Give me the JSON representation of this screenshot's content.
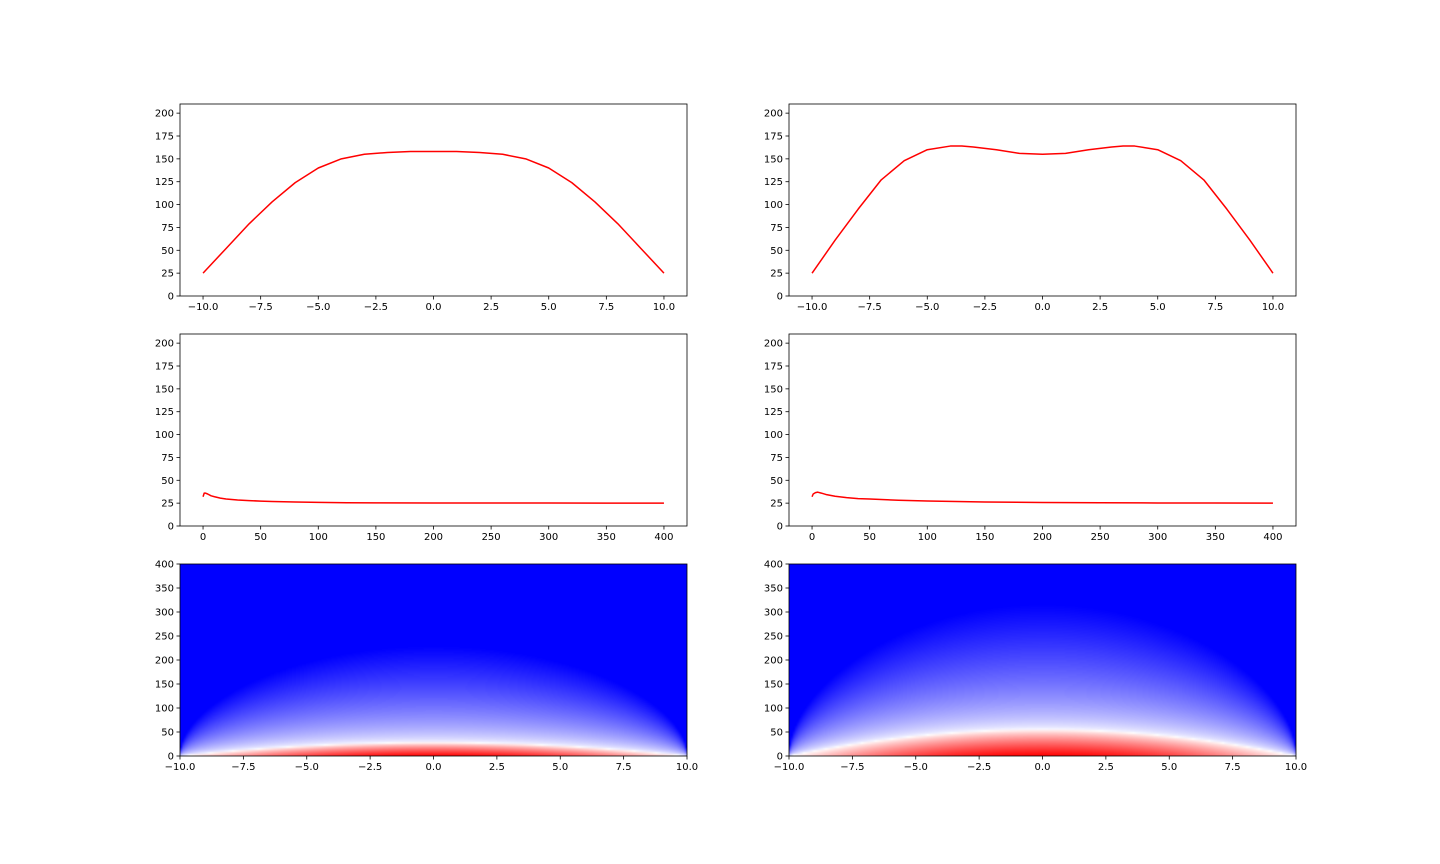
{
  "chart_data": [
    {
      "type": "line",
      "position": "top-left",
      "x": [
        -10,
        -9,
        -8,
        -7,
        -6,
        -5,
        -4,
        -3,
        -2,
        -1,
        0,
        1,
        2,
        3,
        4,
        5,
        6,
        7,
        8,
        9,
        10
      ],
      "series": [
        {
          "color": "#ff0000",
          "values": [
            25,
            52,
            79,
            103,
            124,
            140,
            150,
            155,
            157,
            158,
            158,
            158,
            157,
            155,
            150,
            140,
            124,
            103,
            79,
            52,
            25
          ]
        }
      ],
      "xlim": [
        -11,
        11
      ],
      "ylim": [
        0,
        210
      ],
      "xticks": [
        -10.0,
        -7.5,
        -5.0,
        -2.5,
        0.0,
        2.5,
        5.0,
        7.5,
        10.0
      ],
      "xtick_labels": [
        "−10.0",
        "−7.5",
        "−5.0",
        "−2.5",
        "0.0",
        "2.5",
        "5.0",
        "7.5",
        "10.0"
      ],
      "yticks": [
        0,
        25,
        50,
        75,
        100,
        125,
        150,
        175,
        200
      ],
      "ytick_labels": [
        "0",
        "25",
        "50",
        "75",
        "100",
        "125",
        "150",
        "175",
        "200"
      ]
    },
    {
      "type": "line",
      "position": "top-right",
      "x": [
        -10,
        -9,
        -8,
        -7,
        -6,
        -5,
        -4,
        -3.5,
        -3,
        -2,
        -1,
        0,
        1,
        2,
        3,
        3.5,
        4,
        5,
        6,
        7,
        8,
        9,
        10
      ],
      "series": [
        {
          "color": "#ff0000",
          "values": [
            25,
            61,
            95,
            127,
            148,
            160,
            164,
            164,
            163,
            160,
            156,
            155,
            156,
            160,
            163,
            164,
            164,
            160,
            148,
            127,
            95,
            61,
            25
          ]
        }
      ],
      "xlim": [
        -11,
        11
      ],
      "ylim": [
        0,
        210
      ],
      "xticks": [
        -10.0,
        -7.5,
        -5.0,
        -2.5,
        0.0,
        2.5,
        5.0,
        7.5,
        10.0
      ],
      "xtick_labels": [
        "−10.0",
        "−7.5",
        "−5.0",
        "−2.5",
        "0.0",
        "2.5",
        "5.0",
        "7.5",
        "10.0"
      ],
      "yticks": [
        0,
        25,
        50,
        75,
        100,
        125,
        150,
        175,
        200
      ],
      "ytick_labels": [
        "0",
        "25",
        "50",
        "75",
        "100",
        "125",
        "150",
        "175",
        "200"
      ]
    },
    {
      "type": "line",
      "position": "middle-left",
      "x": [
        0,
        1,
        2,
        4,
        7,
        10,
        15,
        20,
        30,
        40,
        50,
        60,
        80,
        100,
        125,
        150,
        200,
        250,
        300,
        350,
        400
      ],
      "series": [
        {
          "color": "#ff0000",
          "values": [
            32,
            36,
            36,
            35,
            33,
            32,
            30.5,
            29.5,
            28.5,
            27.8,
            27.2,
            26.8,
            26.2,
            25.8,
            25.5,
            25.3,
            25.2,
            25.1,
            25.1,
            25,
            25
          ]
        }
      ],
      "xlim": [
        -20,
        420
      ],
      "ylim": [
        0,
        210
      ],
      "xticks": [
        0,
        50,
        100,
        150,
        200,
        250,
        300,
        350,
        400
      ],
      "xtick_labels": [
        "0",
        "50",
        "100",
        "150",
        "200",
        "250",
        "300",
        "350",
        "400"
      ],
      "yticks": [
        0,
        25,
        50,
        75,
        100,
        125,
        150,
        175,
        200
      ],
      "ytick_labels": [
        "0",
        "25",
        "50",
        "75",
        "100",
        "125",
        "150",
        "175",
        "200"
      ]
    },
    {
      "type": "line",
      "position": "middle-right",
      "x": [
        0,
        1,
        3,
        5,
        8,
        12,
        20,
        30,
        40,
        50,
        75,
        100,
        150,
        200,
        250,
        300,
        350,
        400
      ],
      "series": [
        {
          "color": "#ff0000",
          "values": [
            32,
            35,
            36.5,
            37,
            36,
            34.5,
            32.5,
            31,
            30,
            29.5,
            28.2,
            27.3,
            26.3,
            25.7,
            25.4,
            25.2,
            25.1,
            25
          ]
        }
      ],
      "xlim": [
        -20,
        420
      ],
      "ylim": [
        0,
        210
      ],
      "xticks": [
        0,
        50,
        100,
        150,
        200,
        250,
        300,
        350,
        400
      ],
      "xtick_labels": [
        "0",
        "50",
        "100",
        "150",
        "200",
        "250",
        "300",
        "350",
        "400"
      ],
      "yticks": [
        0,
        25,
        50,
        75,
        100,
        125,
        150,
        175,
        200
      ],
      "ytick_labels": [
        "0",
        "25",
        "50",
        "75",
        "100",
        "125",
        "150",
        "175",
        "200"
      ]
    },
    {
      "type": "heatmap",
      "position": "bottom-left",
      "colormap": "bwr",
      "colors": {
        "low": "#0000ff",
        "mid": "#ffffff",
        "high": "#ff0000"
      },
      "xlim": [
        -10,
        10
      ],
      "ylim": [
        0,
        400
      ],
      "hot_region_height": 28,
      "spread_height": 200,
      "xticks": [
        -10.0,
        -7.5,
        -5.0,
        -2.5,
        0.0,
        2.5,
        5.0,
        7.5,
        10.0
      ],
      "xtick_labels": [
        "−10.0",
        "−7.5",
        "−5.0",
        "−2.5",
        "0.0",
        "2.5",
        "5.0",
        "7.5",
        "10.0"
      ],
      "yticks": [
        0,
        50,
        100,
        150,
        200,
        250,
        300,
        350,
        400
      ],
      "ytick_labels": [
        "0",
        "50",
        "100",
        "150",
        "200",
        "250",
        "300",
        "350",
        "400"
      ]
    },
    {
      "type": "heatmap",
      "position": "bottom-right",
      "colormap": "bwr",
      "colors": {
        "low": "#0000ff",
        "mid": "#ffffff",
        "high": "#ff0000"
      },
      "xlim": [
        -10,
        10
      ],
      "ylim": [
        0,
        400
      ],
      "hot_region_height": 55,
      "spread_height": 260,
      "xticks": [
        -10.0,
        -7.5,
        -5.0,
        -2.5,
        0.0,
        2.5,
        5.0,
        7.5,
        10.0
      ],
      "xtick_labels": [
        "−10.0",
        "−7.5",
        "−5.0",
        "−2.5",
        "0.0",
        "2.5",
        "5.0",
        "7.5",
        "10.0"
      ],
      "yticks": [
        0,
        50,
        100,
        150,
        200,
        250,
        300,
        350,
        400
      ],
      "ytick_labels": [
        "0",
        "50",
        "100",
        "150",
        "200",
        "250",
        "300",
        "350",
        "400"
      ]
    }
  ]
}
